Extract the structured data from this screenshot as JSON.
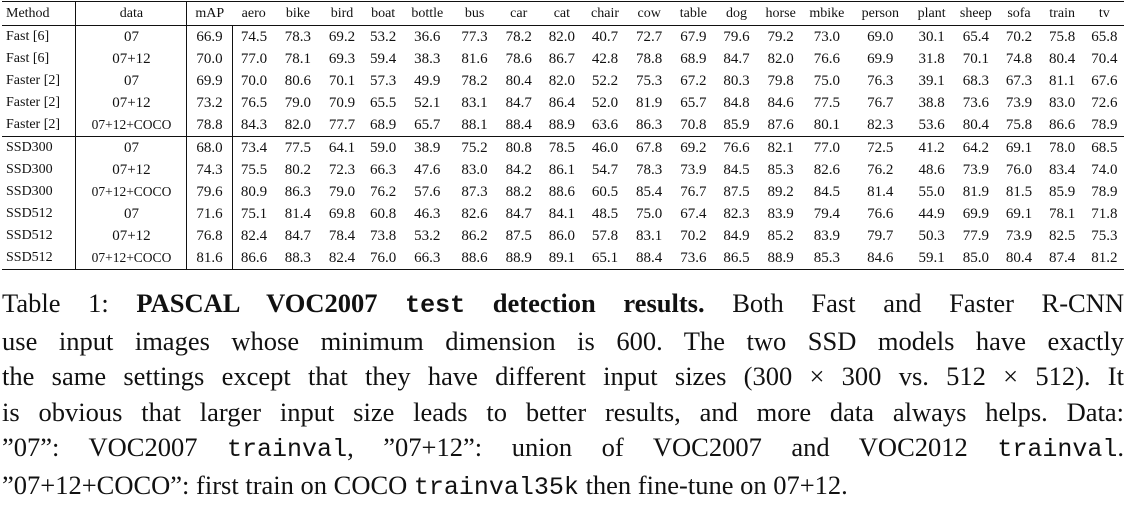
{
  "table": {
    "columns": [
      "Method",
      "data",
      "mAP",
      "aero",
      "bike",
      "bird",
      "boat",
      "bottle",
      "bus",
      "car",
      "cat",
      "chair",
      "cow",
      "table",
      "dog",
      "horse",
      "mbike",
      "person",
      "plant",
      "sheep",
      "sofa",
      "train",
      "tv"
    ],
    "rows": [
      {
        "method": "Fast [6]",
        "data": "07",
        "values": [
          "66.9",
          "74.5",
          "78.3",
          "69.2",
          "53.2",
          "36.6",
          "77.3",
          "78.2",
          "82.0",
          "40.7",
          "72.7",
          "67.9",
          "79.6",
          "79.2",
          "73.0",
          "69.0",
          "30.1",
          "65.4",
          "70.2",
          "75.8",
          "65.8"
        ],
        "bold": []
      },
      {
        "method": "Fast [6]",
        "data": "07+12",
        "values": [
          "70.0",
          "77.0",
          "78.1",
          "69.3",
          "59.4",
          "38.3",
          "81.6",
          "78.6",
          "86.7",
          "42.8",
          "78.8",
          "68.9",
          "84.7",
          "82.0",
          "76.6",
          "69.9",
          "31.8",
          "70.1",
          "74.8",
          "80.4",
          "70.4"
        ],
        "bold": []
      },
      {
        "method": "Faster [2]",
        "data": "07",
        "values": [
          "69.9",
          "70.0",
          "80.6",
          "70.1",
          "57.3",
          "49.9",
          "78.2",
          "80.4",
          "82.0",
          "52.2",
          "75.3",
          "67.2",
          "80.3",
          "79.8",
          "75.0",
          "76.3",
          "39.1",
          "68.3",
          "67.3",
          "81.1",
          "67.6"
        ],
        "bold": []
      },
      {
        "method": "Faster [2]",
        "data": "07+12",
        "values": [
          "73.2",
          "76.5",
          "79.0",
          "70.9",
          "65.5",
          "52.1",
          "83.1",
          "84.7",
          "86.4",
          "52.0",
          "81.9",
          "65.7",
          "84.8",
          "84.6",
          "77.5",
          "76.7",
          "38.8",
          "73.6",
          "73.9",
          "83.0",
          "72.6"
        ],
        "bold": []
      },
      {
        "method": "Faster [2]",
        "data": "07+12+COCO",
        "values": [
          "78.8",
          "84.3",
          "82.0",
          "77.7",
          "68.9",
          "65.7",
          "88.1",
          "88.4",
          "88.9",
          "63.6",
          "86.3",
          "70.8",
          "85.9",
          "87.6",
          "80.1",
          "82.3",
          "53.6",
          "80.4",
          "75.8",
          "86.6",
          "78.9"
        ],
        "bold": []
      },
      {
        "method": "SSD300",
        "data": "07",
        "values": [
          "68.0",
          "73.4",
          "77.5",
          "64.1",
          "59.0",
          "38.9",
          "75.2",
          "80.8",
          "78.5",
          "46.0",
          "67.8",
          "69.2",
          "76.6",
          "82.1",
          "77.0",
          "72.5",
          "41.2",
          "64.2",
          "69.1",
          "78.0",
          "68.5"
        ],
        "bold": []
      },
      {
        "method": "SSD300",
        "data": "07+12",
        "values": [
          "74.3",
          "75.5",
          "80.2",
          "72.3",
          "66.3",
          "47.6",
          "83.0",
          "84.2",
          "86.1",
          "54.7",
          "78.3",
          "73.9",
          "84.5",
          "85.3",
          "82.6",
          "76.2",
          "48.6",
          "73.9",
          "76.0",
          "83.4",
          "74.0"
        ],
        "bold": []
      },
      {
        "method": "SSD300",
        "data": "07+12+COCO",
        "values": [
          "79.6",
          "80.9",
          "86.3",
          "79.0",
          "76.2",
          "57.6",
          "87.3",
          "88.2",
          "88.6",
          "60.5",
          "85.4",
          "76.7",
          "87.5",
          "89.2",
          "84.5",
          "81.4",
          "55.0",
          "81.9",
          "81.5",
          "85.9",
          "78.9"
        ],
        "bold": [
          4,
          11,
          12,
          13,
          18
        ]
      },
      {
        "method": "SSD512",
        "data": "07",
        "values": [
          "71.6",
          "75.1",
          "81.4",
          "69.8",
          "60.8",
          "46.3",
          "82.6",
          "84.7",
          "84.1",
          "48.5",
          "75.0",
          "67.4",
          "82.3",
          "83.9",
          "79.4",
          "76.6",
          "44.9",
          "69.9",
          "69.1",
          "78.1",
          "71.8"
        ],
        "bold": []
      },
      {
        "method": "SSD512",
        "data": "07+12",
        "values": [
          "76.8",
          "82.4",
          "84.7",
          "78.4",
          "73.8",
          "53.2",
          "86.2",
          "87.5",
          "86.0",
          "57.8",
          "83.1",
          "70.2",
          "84.9",
          "85.2",
          "83.9",
          "79.7",
          "50.3",
          "77.9",
          "73.9",
          "82.5",
          "75.3"
        ],
        "bold": []
      },
      {
        "method": "SSD512",
        "data": "07+12+COCO",
        "values": [
          "81.6",
          "86.6",
          "88.3",
          "82.4",
          "76.0",
          "66.3",
          "88.6",
          "88.9",
          "89.1",
          "65.1",
          "88.4",
          "73.6",
          "86.5",
          "88.9",
          "85.3",
          "84.6",
          "59.1",
          "85.0",
          "80.4",
          "87.4",
          "81.2"
        ],
        "bold": [
          0,
          1,
          2,
          3,
          5,
          6,
          7,
          8,
          9,
          10,
          14,
          15,
          16,
          17,
          19,
          20
        ]
      }
    ]
  },
  "caption": {
    "line1": {
      "prefix": "Table 1: ",
      "bold_a": "PASCAL VOC2007 ",
      "bold_mono": "test",
      "bold_b": " detection results.",
      "rest": " Both Fast and Faster R-CNN"
    },
    "line2": "use input images whose minimum dimension is 600. The two SSD models have exactly",
    "line3": "the same settings except that they have different input sizes (300 × 300 vs. 512 × 512). It",
    "line4": "is obvious that larger input size leads to better results, and more data always helps. Data:",
    "line5": {
      "a": "”07”: VOC2007 ",
      "mono1": "trainval",
      "b": ", ”07+12”: union of VOC2007 and VOC2012 ",
      "mono2": "trainval",
      "c": "."
    },
    "line6": {
      "a": "”07+12+COCO”: first train on COCO ",
      "mono": "trainval35k",
      "b": " then fine-tune on 07+12."
    }
  }
}
